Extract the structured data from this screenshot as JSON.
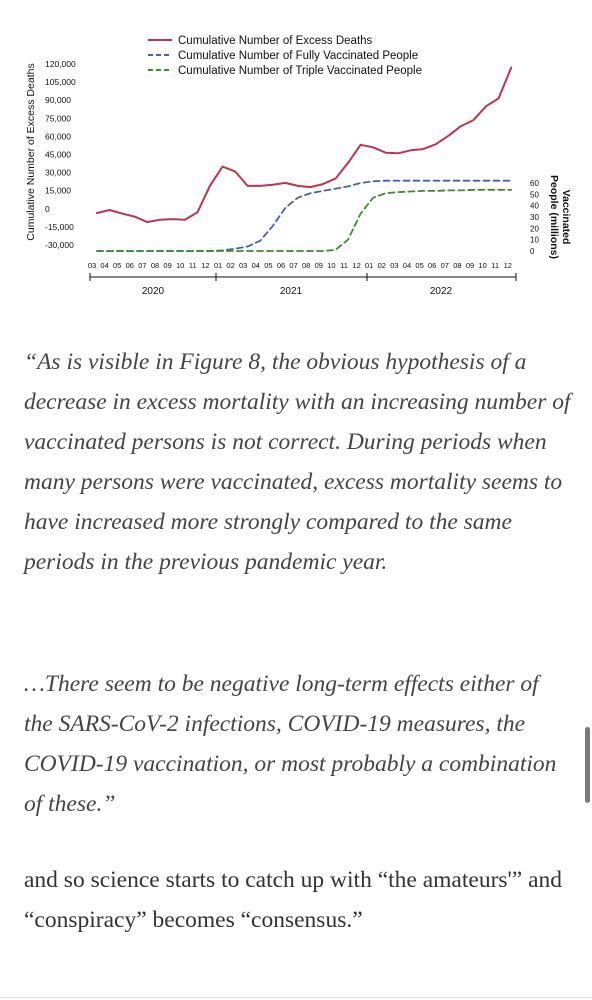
{
  "chart_data": {
    "type": "line",
    "legend_position": "top",
    "grid": false,
    "ylabel_left": "Cumulative Number of Excess Deaths",
    "ylabel_right": "Vaccinated People (millions)",
    "y_left_ticks": [
      "120,000",
      "105,000",
      "90,000",
      "75,000",
      "60,000",
      "45,000",
      "30,000",
      "15,000",
      "0",
      "-15,000",
      "-30,000"
    ],
    "y_left_range": [
      -30000,
      120000
    ],
    "y_right_ticks": [
      "60",
      "50",
      "40",
      "30",
      "20",
      "10",
      "0"
    ],
    "y_right_range": [
      0,
      60
    ],
    "x_tick_labels": [
      "03",
      "04",
      "05",
      "06",
      "07",
      "08",
      "09",
      "10",
      "11",
      "12",
      "01",
      "02",
      "03",
      "04",
      "05",
      "06",
      "07",
      "08",
      "09",
      "10",
      "11",
      "12",
      "01",
      "02",
      "03",
      "04",
      "05",
      "06",
      "07",
      "08",
      "09",
      "10",
      "11",
      "12"
    ],
    "years": [
      "2020",
      "2021",
      "2022"
    ],
    "series": [
      {
        "name": "Cumulative Number of Excess Deaths",
        "axis": "left",
        "color": "#c0344e",
        "dash": "solid",
        "values": [
          -3500,
          -1000,
          -4000,
          -6500,
          -11000,
          -9000,
          -8500,
          -9000,
          -3000,
          19000,
          35000,
          31000,
          19000,
          19000,
          20000,
          21500,
          19000,
          18000,
          20500,
          25000,
          38000,
          53000,
          51000,
          46500,
          46000,
          48500,
          49500,
          53500,
          60500,
          68500,
          73500,
          85000,
          91500,
          117000
        ]
      },
      {
        "name": "Cumulative Number of Fully Vaccinated People",
        "axis": "right",
        "color": "#4a60a8",
        "dash": "dashed",
        "values": [
          0,
          0,
          0,
          0,
          0,
          0,
          0,
          0,
          0,
          0,
          0.5,
          2,
          4,
          9,
          22,
          38,
          47,
          51,
          53,
          55,
          57,
          60,
          61.5,
          62,
          62,
          62,
          62,
          62,
          62,
          62,
          62,
          62,
          62,
          62
        ]
      },
      {
        "name": "Cumulative Number of Triple Vaccinated People",
        "axis": "right",
        "color": "#3f8a34",
        "dash": "dashed",
        "values": [
          0,
          0,
          0,
          0,
          0,
          0,
          0,
          0,
          0,
          0,
          0,
          0,
          0,
          0,
          0,
          0,
          0,
          0,
          0,
          1,
          10,
          33,
          47,
          51,
          52,
          52.5,
          53,
          53,
          53.5,
          53.5,
          54,
          54,
          54,
          54
        ]
      }
    ]
  },
  "quote_1": "“As is visible in Figure 8, the obvious hypothesis of a decrease in excess mortality with an increasing number of vaccinated persons is not correct. During periods when many persons were vaccinated, excess mortality seems to have increased more strongly compared to the same periods in the previous pandemic year.",
  "quote_2": "…There seem to be negative long-term effects either of the SARS-CoV-2 infections, COVID-19 measures, the COVID-19 vaccination, or most probably a combination of these.”",
  "body_text": "and so science starts to catch up with “the amateurs'” and “conspiracy” becomes “consensus.”"
}
